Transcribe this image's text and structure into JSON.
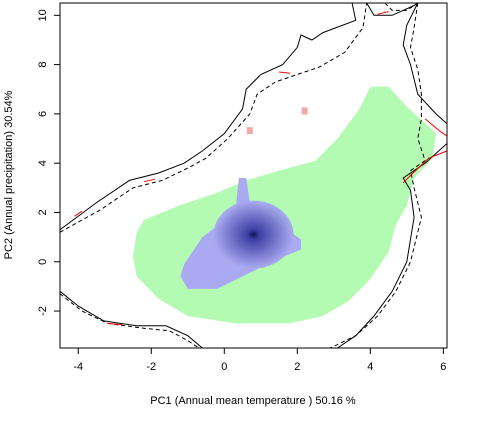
{
  "chart_data": {
    "type": "heatmap",
    "xlabel": "PC1 (Annual mean temperature ) 50.16 %",
    "ylabel": "PC2 (Annual precipitation) 30.54%",
    "xlim": [
      -4.5,
      6.1
    ],
    "ylim": [
      -3.5,
      10.5
    ],
    "x_ticks": [
      -4,
      -2,
      0,
      2,
      4,
      6
    ],
    "y_ticks": [
      -2,
      0,
      2,
      4,
      6,
      8,
      10
    ],
    "grid": false,
    "legend": "none",
    "colors": {
      "background_region": "#ffffff",
      "overlap_region": "#b3fab3",
      "density_low": "#aaaaf2",
      "density_high": "#0a0a4a",
      "small_patches": "#f2a8a8",
      "contour_solid": "#000000",
      "contour_dashed": "#000000",
      "contour_red": "#ff0000"
    },
    "density_peak": {
      "x": 0.8,
      "y": 1.1
    },
    "green_region_outline": [
      [
        -2.4,
        1.2
      ],
      [
        -2.2,
        1.7
      ],
      [
        -1.2,
        2.3
      ],
      [
        -0.2,
        2.8
      ],
      [
        0.6,
        3.3
      ],
      [
        1.5,
        3.7
      ],
      [
        2.5,
        4.1
      ],
      [
        3.1,
        5.0
      ],
      [
        3.7,
        6.2
      ],
      [
        4.0,
        7.1
      ],
      [
        4.5,
        7.1
      ],
      [
        5.0,
        6.3
      ],
      [
        5.8,
        5.2
      ],
      [
        5.7,
        4.2
      ],
      [
        5.2,
        3.4
      ],
      [
        5.0,
        2.3
      ],
      [
        4.7,
        1.5
      ],
      [
        4.5,
        0.4
      ],
      [
        4.0,
        -0.7
      ],
      [
        3.4,
        -1.6
      ],
      [
        2.7,
        -2.2
      ],
      [
        1.8,
        -2.5
      ],
      [
        0.3,
        -2.5
      ],
      [
        -1.0,
        -2.2
      ],
      [
        -1.8,
        -1.5
      ],
      [
        -2.4,
        -0.6
      ],
      [
        -2.5,
        0.2
      ]
    ],
    "blue_region_outline": [
      [
        -1.1,
        -0.1
      ],
      [
        -0.6,
        1.0
      ],
      [
        0.3,
        2.0
      ],
      [
        0.4,
        3.4
      ],
      [
        0.6,
        3.4
      ],
      [
        0.7,
        2.4
      ],
      [
        1.3,
        1.8
      ],
      [
        2.1,
        0.9
      ],
      [
        2.1,
        0.5
      ],
      [
        1.3,
        0.0
      ],
      [
        0.5,
        -0.6
      ],
      [
        -0.2,
        -1.1
      ],
      [
        -1.0,
        -1.1
      ],
      [
        -1.2,
        -0.6
      ]
    ],
    "pink_patches": [
      {
        "x": 0.7,
        "y": 5.3
      },
      {
        "x": 2.2,
        "y": 6.1
      }
    ],
    "contours": [
      {
        "style": "solid",
        "points": [
          [
            -4.5,
            1.3
          ],
          [
            -3.5,
            2.4
          ],
          [
            -2.6,
            3.3
          ],
          [
            -1.8,
            3.6
          ],
          [
            -1.1,
            4.0
          ],
          [
            -0.6,
            4.5
          ],
          [
            0.0,
            5.2
          ],
          [
            0.5,
            6.2
          ],
          [
            0.6,
            7.0
          ],
          [
            1.0,
            7.6
          ],
          [
            1.6,
            8.0
          ],
          [
            2.0,
            8.7
          ],
          [
            2.1,
            9.2
          ],
          [
            2.4,
            9.0
          ],
          [
            2.7,
            9.3
          ],
          [
            3.6,
            9.8
          ],
          [
            3.5,
            10.5
          ]
        ]
      },
      {
        "style": "dashed",
        "points": [
          [
            -4.5,
            1.2
          ],
          [
            -3.4,
            2.1
          ],
          [
            -2.5,
            3.0
          ],
          [
            -1.7,
            3.3
          ],
          [
            -1.0,
            3.8
          ],
          [
            -0.5,
            4.2
          ],
          [
            0.1,
            5.0
          ],
          [
            0.7,
            6.0
          ],
          [
            0.9,
            6.8
          ],
          [
            1.4,
            7.3
          ],
          [
            2.0,
            7.6
          ],
          [
            2.6,
            7.9
          ],
          [
            3.3,
            8.5
          ],
          [
            3.8,
            9.5
          ],
          [
            3.9,
            10.5
          ]
        ]
      },
      {
        "style": "solid",
        "points": [
          [
            3.9,
            10.5
          ],
          [
            4.1,
            10.0
          ],
          [
            4.6,
            10.0
          ],
          [
            5.2,
            10.4
          ],
          [
            5.3,
            10.5
          ]
        ]
      },
      {
        "style": "dashed",
        "points": [
          [
            4.4,
            10.5
          ],
          [
            4.6,
            10.2
          ],
          [
            5.0,
            10.2
          ],
          [
            5.3,
            10.5
          ]
        ]
      },
      {
        "style": "solid",
        "points": [
          [
            5.3,
            10.5
          ],
          [
            5.0,
            9.6
          ],
          [
            4.9,
            8.8
          ],
          [
            5.1,
            8.0
          ],
          [
            5.3,
            6.8
          ],
          [
            5.8,
            6.0
          ],
          [
            6.1,
            5.6
          ]
        ]
      },
      {
        "style": "dashed",
        "points": [
          [
            5.3,
            10.5
          ],
          [
            5.2,
            9.5
          ],
          [
            5.1,
            8.7
          ],
          [
            5.3,
            7.8
          ],
          [
            5.4,
            6.8
          ],
          [
            5.4,
            5.8
          ],
          [
            5.3,
            5.0
          ],
          [
            5.5,
            4.1
          ],
          [
            5.1,
            3.7
          ],
          [
            5.2,
            3.0
          ],
          [
            5.4,
            1.8
          ],
          [
            5.1,
            0.0
          ],
          [
            4.7,
            -1.2
          ],
          [
            4.2,
            -2.2
          ],
          [
            3.6,
            -3.0
          ],
          [
            2.9,
            -3.5
          ]
        ]
      },
      {
        "style": "solid",
        "points": [
          [
            6.1,
            4.8
          ],
          [
            5.5,
            4.0
          ],
          [
            4.9,
            3.4
          ],
          [
            5.1,
            2.9
          ],
          [
            5.2,
            1.8
          ],
          [
            5.0,
            0.0
          ],
          [
            4.6,
            -1.2
          ],
          [
            4.1,
            -2.2
          ],
          [
            3.6,
            -3.0
          ],
          [
            3.1,
            -3.5
          ]
        ]
      },
      {
        "style": "red",
        "points": [
          [
            5.5,
            5.8
          ],
          [
            5.9,
            5.3
          ],
          [
            6.1,
            5.1
          ]
        ]
      },
      {
        "style": "red",
        "points": [
          [
            6.1,
            4.5
          ],
          [
            5.6,
            4.2
          ],
          [
            5.1,
            3.5
          ],
          [
            4.9,
            3.2
          ]
        ]
      },
      {
        "style": "solid",
        "points": [
          [
            -4.5,
            -1.2
          ],
          [
            -4.0,
            -1.8
          ],
          [
            -3.3,
            -2.4
          ],
          [
            -2.4,
            -2.6
          ],
          [
            -1.6,
            -2.6
          ],
          [
            -1.0,
            -3.0
          ],
          [
            -0.6,
            -3.5
          ]
        ]
      },
      {
        "style": "dashed",
        "points": [
          [
            -4.5,
            -1.3
          ],
          [
            -3.9,
            -2.0
          ],
          [
            -3.2,
            -2.5
          ],
          [
            -2.2,
            -2.7
          ],
          [
            -1.5,
            -2.8
          ],
          [
            -1.0,
            -3.2
          ],
          [
            -0.7,
            -3.5
          ]
        ]
      },
      {
        "style": "red",
        "points": [
          [
            -3.2,
            -2.5
          ],
          [
            -2.8,
            -2.55
          ]
        ]
      },
      {
        "style": "red",
        "points": [
          [
            -4.1,
            1.85
          ],
          [
            -3.9,
            2.05
          ]
        ]
      },
      {
        "style": "red",
        "points": [
          [
            1.5,
            7.7
          ],
          [
            1.8,
            7.65
          ]
        ]
      },
      {
        "style": "red",
        "points": [
          [
            4.2,
            10.05
          ],
          [
            4.5,
            10.15
          ]
        ]
      },
      {
        "style": "red",
        "points": [
          [
            -2.2,
            3.25
          ],
          [
            -1.9,
            3.35
          ]
        ]
      }
    ]
  }
}
